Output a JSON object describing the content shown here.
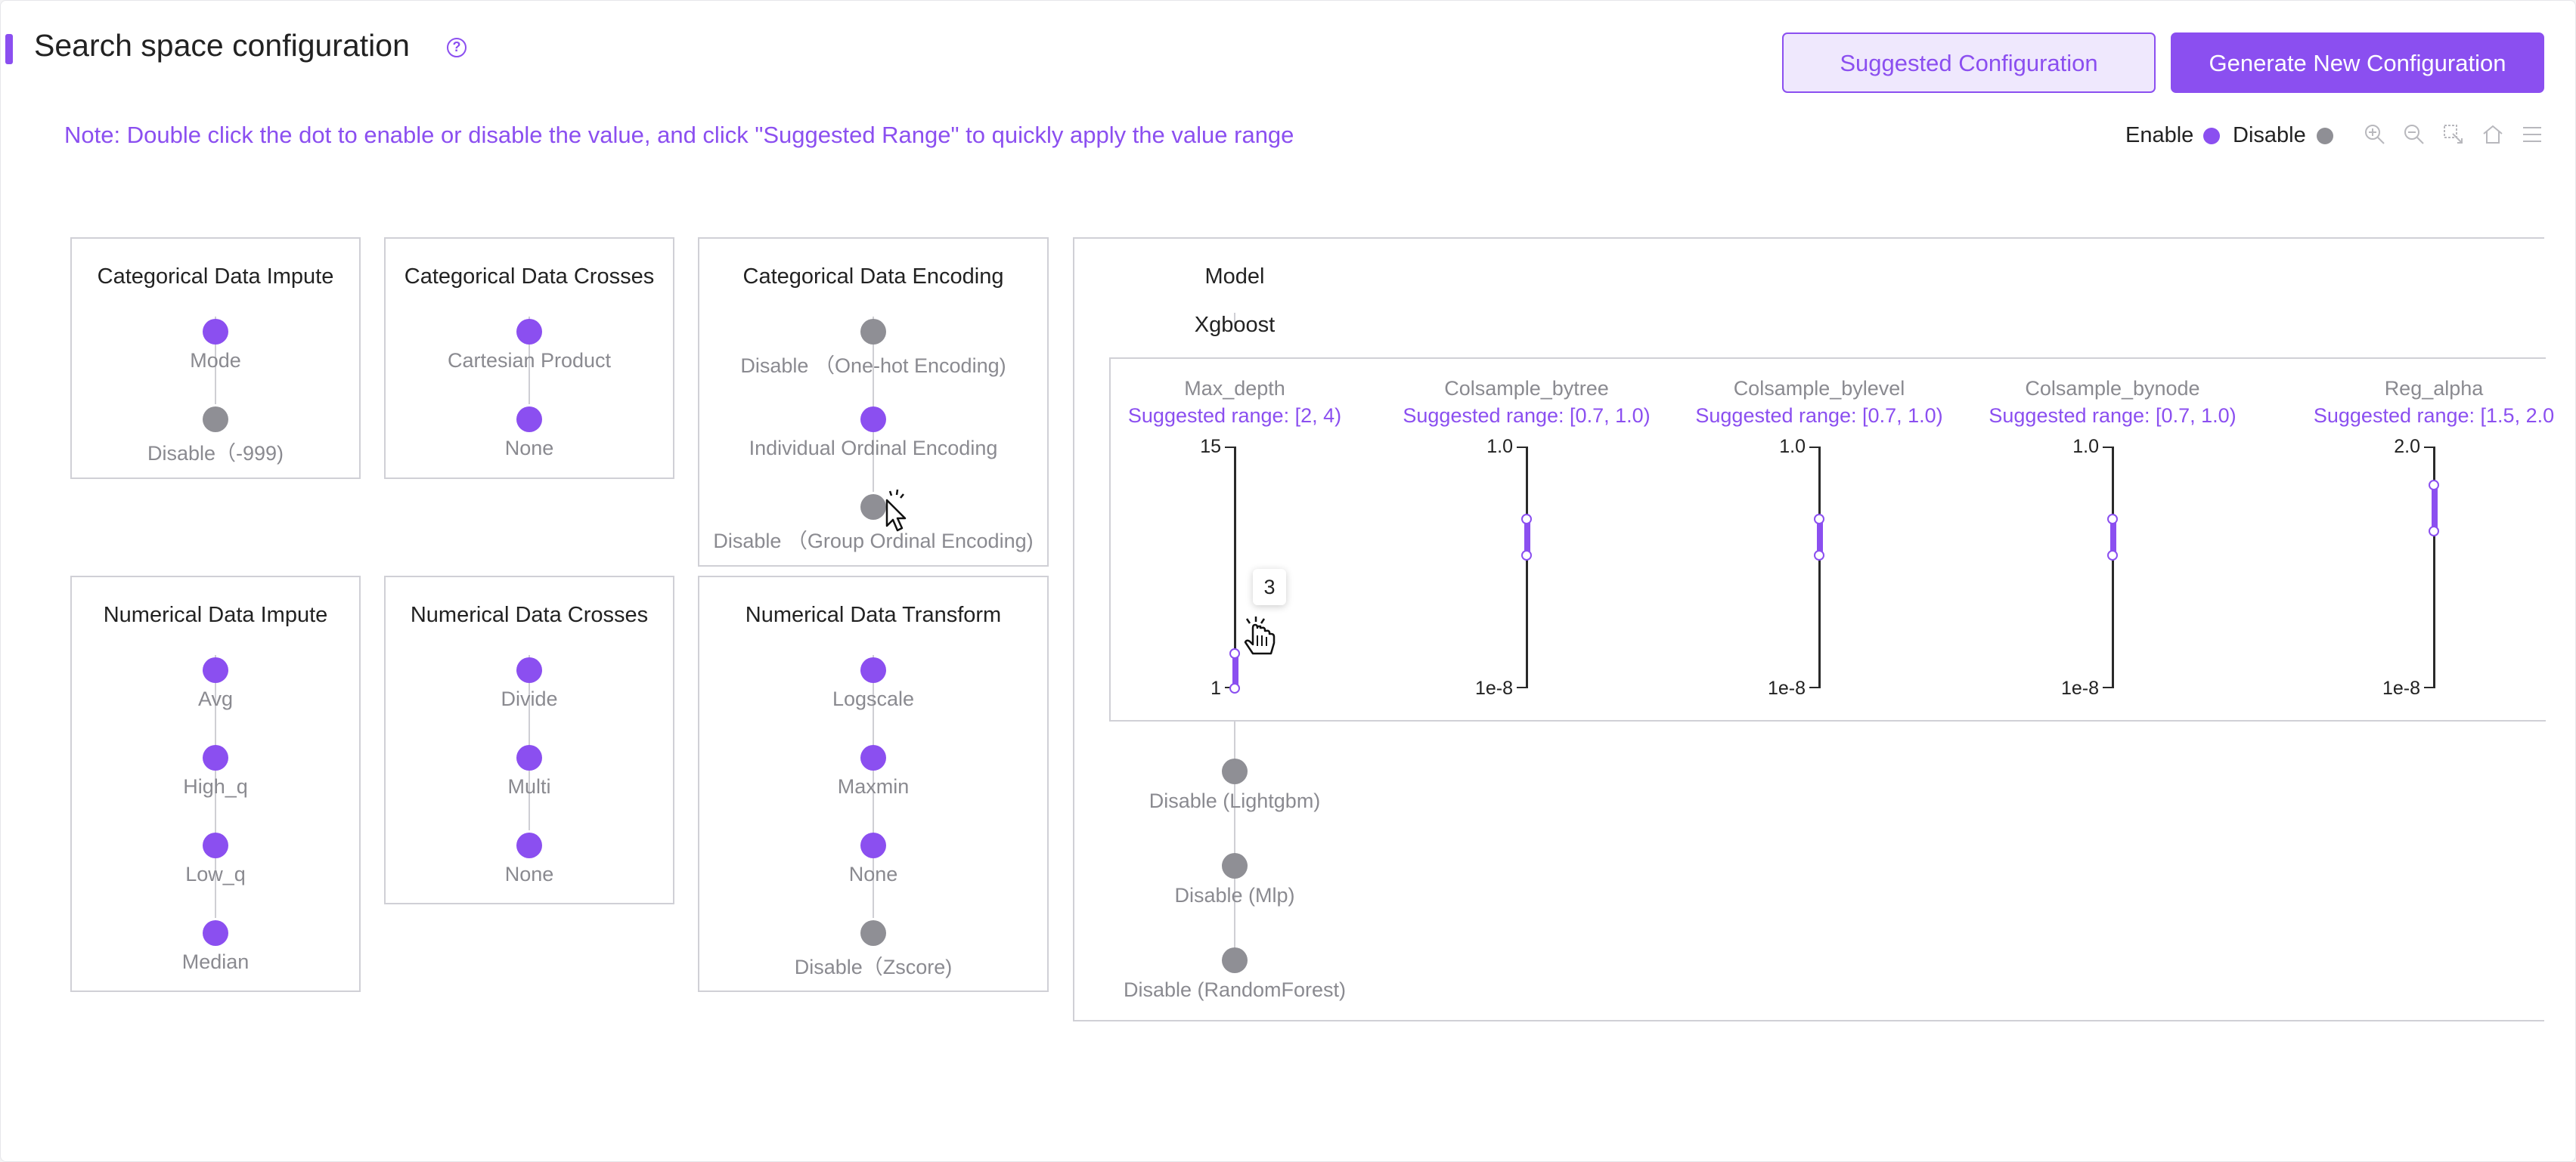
{
  "header": {
    "title": "Search space configuration",
    "help_icon": "question-circle-icon",
    "suggested_button": "Suggested Configuration",
    "generate_button": "Generate New Configuration"
  },
  "note": "Note: Double click the dot to enable or disable the value, and click \"Suggested Range\" to quickly apply the value range",
  "legend": {
    "enable_label": "Enable",
    "disable_label": "Disable",
    "enable_color": "#8b4ff0",
    "disable_color": "#8f8f95"
  },
  "toolbar_icons": [
    "zoom-in-icon",
    "zoom-out-icon",
    "zoom-select-icon",
    "home-icon",
    "menu-icon"
  ],
  "cards": {
    "cat_impute": {
      "title": "Categorical Data Impute",
      "options": [
        {
          "label": "Mode",
          "enabled": true
        },
        {
          "label": "Disable（-999)",
          "enabled": false
        }
      ]
    },
    "cat_crosses": {
      "title": "Categorical Data Crosses",
      "options": [
        {
          "label": "Cartesian Product",
          "enabled": true
        },
        {
          "label": "None",
          "enabled": true
        }
      ]
    },
    "cat_encoding": {
      "title": "Categorical Data Encoding",
      "options": [
        {
          "label": "Disable （One-hot Encoding)",
          "enabled": false
        },
        {
          "label": "Individual Ordinal Encoding",
          "enabled": true
        },
        {
          "label": "Disable （Group Ordinal Encoding)",
          "enabled": false
        }
      ]
    },
    "num_impute": {
      "title": "Numerical Data Impute",
      "options": [
        {
          "label": "Avg",
          "enabled": true
        },
        {
          "label": "High_q",
          "enabled": true
        },
        {
          "label": "Low_q",
          "enabled": true
        },
        {
          "label": "Median",
          "enabled": true
        }
      ]
    },
    "num_crosses": {
      "title": "Numerical Data Crosses",
      "options": [
        {
          "label": "Divide",
          "enabled": true
        },
        {
          "label": "Multi",
          "enabled": true
        },
        {
          "label": "None",
          "enabled": true
        }
      ]
    },
    "num_transform": {
      "title": "Numerical Data Transform",
      "options": [
        {
          "label": "Logscale",
          "enabled": true
        },
        {
          "label": "Maxmin",
          "enabled": true
        },
        {
          "label": "None",
          "enabled": true
        },
        {
          "label": "Disable（Zscore)",
          "enabled": false
        }
      ]
    }
  },
  "model": {
    "title": "Model",
    "selected": "Xgboost",
    "params": [
      {
        "name": "Max_depth",
        "suggested": "Suggested range: [2, 4)",
        "top_label": "15",
        "bottom_label": "1",
        "scale": "linear",
        "min": 1,
        "max": 15,
        "sel_min": 1,
        "sel_max": 3
      },
      {
        "name": "Colsample_bytree",
        "suggested": "Suggested range: [0.7, 1.0)",
        "top_label": "1.0",
        "bottom_label": "1e-8",
        "scale": "linear",
        "min": 0,
        "max": 1.0,
        "sel_min": 0.55,
        "sel_max": 0.7
      },
      {
        "name": "Colsample_bylevel",
        "suggested": "Suggested range: [0.7, 1.0)",
        "top_label": "1.0",
        "bottom_label": "1e-8",
        "scale": "linear",
        "min": 0,
        "max": 1.0,
        "sel_min": 0.55,
        "sel_max": 0.7
      },
      {
        "name": "Colsample_bynode",
        "suggested": "Suggested range: [0.7, 1.0)",
        "top_label": "1.0",
        "bottom_label": "1e-8",
        "scale": "linear",
        "min": 0,
        "max": 1.0,
        "sel_min": 0.55,
        "sel_max": 0.7
      },
      {
        "name": "Reg_alpha",
        "suggested": "Suggested range: [1.5, 2.0",
        "top_label": "2.0",
        "bottom_label": "1e-8",
        "scale": "linear",
        "min": 0,
        "max": 2.0,
        "sel_min": 1.3,
        "sel_max": 1.68
      }
    ],
    "tooltip_value": "3",
    "others": [
      {
        "label": "Disable (Lightgbm)",
        "enabled": false
      },
      {
        "label": "Disable (Mlp)",
        "enabled": false
      },
      {
        "label": "Disable (RandomForest)",
        "enabled": false
      }
    ]
  }
}
